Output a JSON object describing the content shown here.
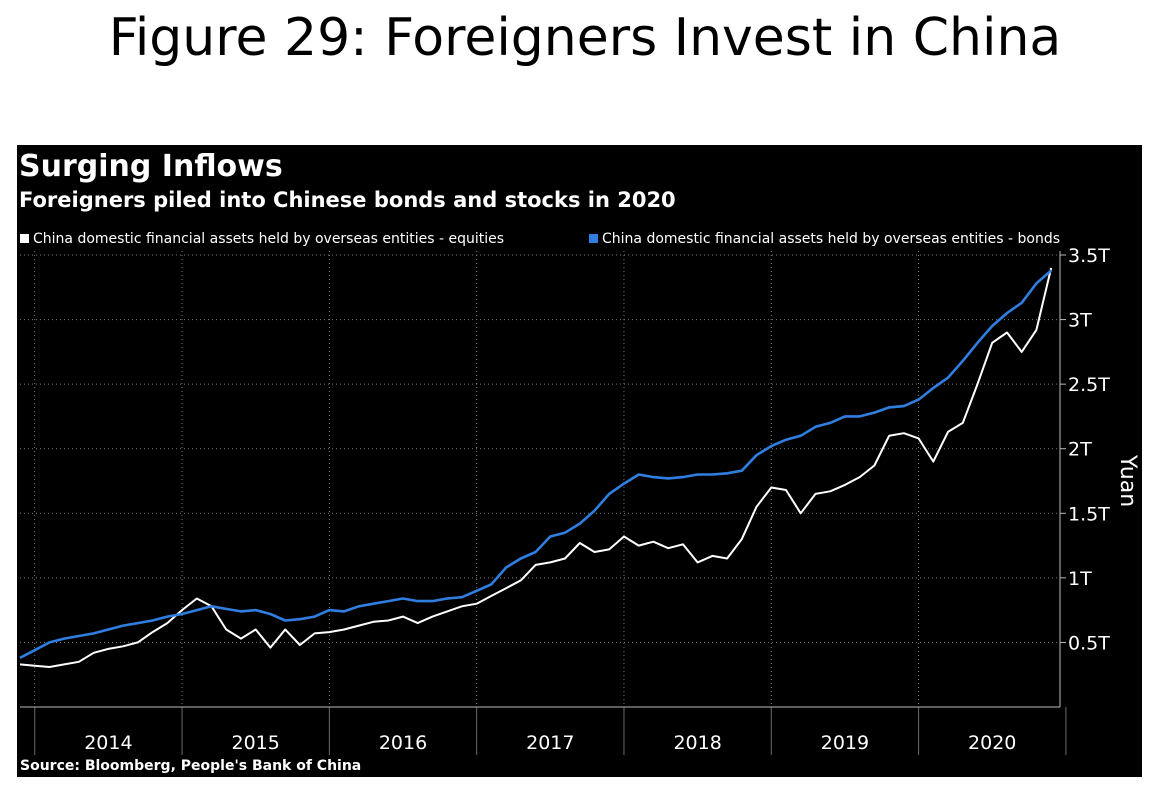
{
  "page_title": "Figure 29: Foreigners Invest in China",
  "chart_data": {
    "type": "line",
    "title": "Surging Inflows",
    "subtitle": "Foreigners piled into Chinese bonds and stocks in 2020",
    "ylabel": "Yuan",
    "ylim": [
      0,
      3.5
    ],
    "yticks": [
      0.5,
      1,
      1.5,
      2,
      2.5,
      3,
      3.5
    ],
    "ytick_labels": [
      "0.5T",
      "1T",
      "1.5T",
      "2T",
      "2.5T",
      "3T",
      "3.5T"
    ],
    "xlim": [
      2013.9,
      2020.96
    ],
    "x_tick_years": [
      2014,
      2015,
      2016,
      2017,
      2018,
      2019,
      2020
    ],
    "x_tick_labels": [
      "2014",
      "2015",
      "2016",
      "2017",
      "2018",
      "2019",
      "2020"
    ],
    "grid": true,
    "legend_position": "top-left",
    "background": "#000000",
    "series": [
      {
        "name": "China domestic financial assets held by overseas entities - equities",
        "color": "#ffffff",
        "x": [
          2013.9,
          2014.0,
          2014.1,
          2014.2,
          2014.3,
          2014.4,
          2014.5,
          2014.6,
          2014.7,
          2014.8,
          2014.9,
          2015.0,
          2015.1,
          2015.2,
          2015.3,
          2015.4,
          2015.5,
          2015.6,
          2015.7,
          2015.8,
          2015.9,
          2016.0,
          2016.1,
          2016.2,
          2016.3,
          2016.4,
          2016.5,
          2016.6,
          2016.7,
          2016.8,
          2016.9,
          2017.0,
          2017.1,
          2017.2,
          2017.3,
          2017.4,
          2017.5,
          2017.6,
          2017.7,
          2017.8,
          2017.9,
          2018.0,
          2018.1,
          2018.2,
          2018.3,
          2018.4,
          2018.5,
          2018.6,
          2018.7,
          2018.8,
          2018.9,
          2019.0,
          2019.1,
          2019.2,
          2019.3,
          2019.4,
          2019.5,
          2019.6,
          2019.7,
          2019.8,
          2019.9,
          2020.0,
          2020.1,
          2020.2,
          2020.3,
          2020.4,
          2020.5,
          2020.6,
          2020.7,
          2020.8,
          2020.9
        ],
        "values": [
          0.33,
          0.32,
          0.31,
          0.33,
          0.35,
          0.42,
          0.45,
          0.47,
          0.5,
          0.58,
          0.65,
          0.75,
          0.84,
          0.78,
          0.6,
          0.53,
          0.6,
          0.46,
          0.6,
          0.48,
          0.57,
          0.58,
          0.6,
          0.63,
          0.66,
          0.67,
          0.7,
          0.65,
          0.7,
          0.74,
          0.78,
          0.8,
          0.86,
          0.92,
          0.98,
          1.1,
          1.12,
          1.15,
          1.27,
          1.2,
          1.22,
          1.32,
          1.25,
          1.28,
          1.23,
          1.26,
          1.12,
          1.17,
          1.15,
          1.3,
          1.55,
          1.7,
          1.68,
          1.5,
          1.65,
          1.67,
          1.72,
          1.78,
          1.87,
          2.1,
          2.12,
          2.08,
          1.9,
          2.13,
          2.2,
          2.5,
          2.82,
          2.9,
          2.75,
          2.92,
          3.4
        ]
      },
      {
        "name": "China domestic financial assets held by overseas entities - bonds",
        "color": "#2f7ee0",
        "x": [
          2013.9,
          2014.0,
          2014.1,
          2014.2,
          2014.3,
          2014.4,
          2014.5,
          2014.6,
          2014.7,
          2014.8,
          2014.9,
          2015.0,
          2015.1,
          2015.2,
          2015.3,
          2015.4,
          2015.5,
          2015.6,
          2015.7,
          2015.8,
          2015.9,
          2016.0,
          2016.1,
          2016.2,
          2016.3,
          2016.4,
          2016.5,
          2016.6,
          2016.7,
          2016.8,
          2016.9,
          2017.0,
          2017.1,
          2017.2,
          2017.3,
          2017.4,
          2017.5,
          2017.6,
          2017.7,
          2017.8,
          2017.9,
          2018.0,
          2018.1,
          2018.2,
          2018.3,
          2018.4,
          2018.5,
          2018.6,
          2018.7,
          2018.8,
          2018.9,
          2019.0,
          2019.1,
          2019.2,
          2019.3,
          2019.4,
          2019.5,
          2019.6,
          2019.7,
          2019.8,
          2019.9,
          2020.0,
          2020.1,
          2020.2,
          2020.3,
          2020.4,
          2020.5,
          2020.6,
          2020.7,
          2020.8,
          2020.9
        ],
        "values": [
          0.38,
          0.44,
          0.5,
          0.53,
          0.55,
          0.57,
          0.6,
          0.63,
          0.65,
          0.67,
          0.7,
          0.72,
          0.75,
          0.78,
          0.76,
          0.74,
          0.75,
          0.72,
          0.67,
          0.68,
          0.7,
          0.75,
          0.74,
          0.78,
          0.8,
          0.82,
          0.84,
          0.82,
          0.82,
          0.84,
          0.85,
          0.9,
          0.95,
          1.08,
          1.15,
          1.2,
          1.32,
          1.35,
          1.42,
          1.52,
          1.65,
          1.73,
          1.8,
          1.78,
          1.77,
          1.78,
          1.8,
          1.8,
          1.81,
          1.83,
          1.95,
          2.02,
          2.07,
          2.1,
          2.17,
          2.2,
          2.25,
          2.25,
          2.28,
          2.32,
          2.33,
          2.38,
          2.47,
          2.55,
          2.68,
          2.82,
          2.95,
          3.05,
          3.13,
          3.28,
          3.38
        ]
      }
    ]
  },
  "source": "Source: Bloomberg, People's Bank of China"
}
